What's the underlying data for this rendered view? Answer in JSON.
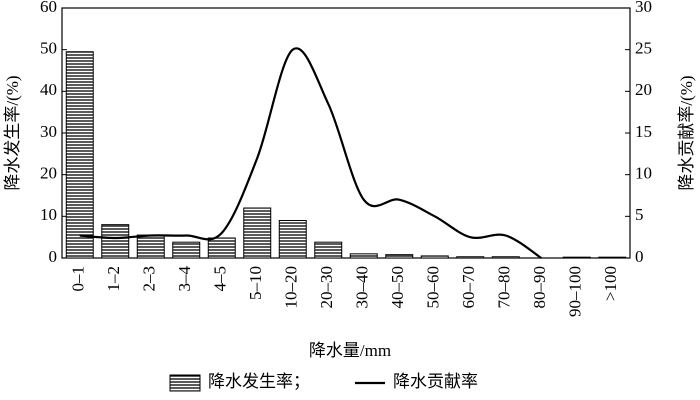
{
  "chart_data": {
    "type": "bar",
    "x_label": "降水量/mm",
    "categories": [
      "0–1",
      "1–2",
      "2–3",
      "3–4",
      "4–5",
      "5–10",
      "10–20",
      "20–30",
      "30–40",
      "40–50",
      "50–60",
      "60–70",
      "70–80",
      "80–90",
      "90–100",
      ">100"
    ],
    "series": [
      {
        "name": "降水发生率；",
        "type": "bar",
        "color": "#000000",
        "axis": "y",
        "values": [
          49.5,
          8,
          5.5,
          3.8,
          4.8,
          12,
          9,
          3.8,
          1,
          0.8,
          0.5,
          0.3,
          0.3,
          0,
          0.2,
          0.2
        ]
      },
      {
        "name": "降水贡献率",
        "type": "line",
        "color": "#000000",
        "axis": "y2",
        "values": [
          2.7,
          2.4,
          2.7,
          2.7,
          3,
          12,
          25,
          18.5,
          7,
          7,
          5,
          2.5,
          2.7,
          0,
          null,
          null
        ]
      }
    ],
    "y_label": "降水发生率/(%)",
    "y2_label": "降水贡献率/(%)",
    "ylim": [
      0,
      60
    ],
    "yticks": [
      0,
      10,
      20,
      30,
      40,
      50,
      60
    ],
    "y2lim": [
      0,
      30
    ],
    "y2ticks": [
      0,
      5,
      10,
      15,
      20,
      25,
      30
    ],
    "grid": false,
    "legend": "bottom"
  }
}
